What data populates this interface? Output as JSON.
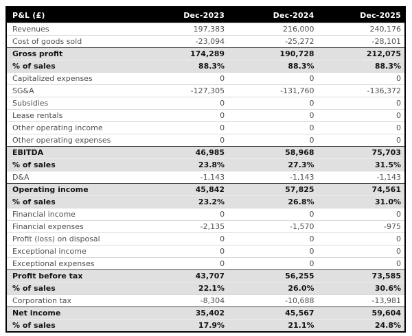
{
  "chart_data": {
    "type": "table",
    "title": "P&L (£)",
    "header": {
      "label": "P&L (£)",
      "columns": [
        "Dec-2023",
        "Dec-2024",
        "Dec-2025"
      ]
    },
    "rows": [
      {
        "label": "Revenues",
        "values": [
          "197,383",
          "216,000",
          "240,176"
        ],
        "style": "normal",
        "section_start": false
      },
      {
        "label": "Cost of goods sold",
        "values": [
          "-23,094",
          "-25,272",
          "-28,101"
        ],
        "style": "normal",
        "section_start": false
      },
      {
        "label": "Gross profit",
        "values": [
          "174,289",
          "190,728",
          "212,075"
        ],
        "style": "subtotal",
        "section_start": true
      },
      {
        "label": "% of sales",
        "values": [
          "88.3%",
          "88.3%",
          "88.3%"
        ],
        "style": "subtotal",
        "section_start": false
      },
      {
        "label": "Capitalized expenses",
        "values": [
          "0",
          "0",
          "0"
        ],
        "style": "normal",
        "section_start": false
      },
      {
        "label": "SG&A",
        "values": [
          "-127,305",
          "-131,760",
          "-136,372"
        ],
        "style": "normal",
        "section_start": false
      },
      {
        "label": "Subsidies",
        "values": [
          "0",
          "0",
          "0"
        ],
        "style": "normal",
        "section_start": false
      },
      {
        "label": "Lease rentals",
        "values": [
          "0",
          "0",
          "0"
        ],
        "style": "normal",
        "section_start": false
      },
      {
        "label": "Other operating income",
        "values": [
          "0",
          "0",
          "0"
        ],
        "style": "normal",
        "section_start": false
      },
      {
        "label": "Other operating expenses",
        "values": [
          "0",
          "0",
          "0"
        ],
        "style": "normal",
        "section_start": false
      },
      {
        "label": "EBITDA",
        "values": [
          "46,985",
          "58,968",
          "75,703"
        ],
        "style": "subtotal",
        "section_start": true
      },
      {
        "label": "% of sales",
        "values": [
          "23.8%",
          "27.3%",
          "31.5%"
        ],
        "style": "subtotal",
        "section_start": false
      },
      {
        "label": "D&A",
        "values": [
          "-1,143",
          "-1,143",
          "-1,143"
        ],
        "style": "normal",
        "section_start": false
      },
      {
        "label": "Operating income",
        "values": [
          "45,842",
          "57,825",
          "74,561"
        ],
        "style": "subtotal",
        "section_start": true
      },
      {
        "label": "% of sales",
        "values": [
          "23.2%",
          "26.8%",
          "31.0%"
        ],
        "style": "subtotal",
        "section_start": false
      },
      {
        "label": "Financial income",
        "values": [
          "0",
          "0",
          "0"
        ],
        "style": "normal",
        "section_start": false
      },
      {
        "label": "Financial expenses",
        "values": [
          "-2,135",
          "-1,570",
          "-975"
        ],
        "style": "normal",
        "section_start": false
      },
      {
        "label": "Profit (loss) on disposal",
        "values": [
          "0",
          "0",
          "0"
        ],
        "style": "normal",
        "section_start": false
      },
      {
        "label": "Exceptional income",
        "values": [
          "0",
          "0",
          "0"
        ],
        "style": "normal",
        "section_start": false
      },
      {
        "label": "Exceptional expenses",
        "values": [
          "0",
          "0",
          "0"
        ],
        "style": "normal",
        "section_start": false
      },
      {
        "label": "Profit before tax",
        "values": [
          "43,707",
          "56,255",
          "73,585"
        ],
        "style": "subtotal",
        "section_start": true
      },
      {
        "label": "% of sales",
        "values": [
          "22.1%",
          "26.0%",
          "30.6%"
        ],
        "style": "subtotal",
        "section_start": false
      },
      {
        "label": "Corporation tax",
        "values": [
          "-8,304",
          "-10,688",
          "-13,981"
        ],
        "style": "normal",
        "section_start": false
      },
      {
        "label": "Net income",
        "values": [
          "35,402",
          "45,567",
          "59,604"
        ],
        "style": "subtotal",
        "section_start": true
      },
      {
        "label": "% of sales",
        "values": [
          "17.9%",
          "21.1%",
          "24.8%"
        ],
        "style": "subtotal",
        "section_start": false
      }
    ],
    "layout": {
      "header_bg": "#000000",
      "header_text": "#ffffff",
      "subtotal_row_bg": "#e0e0e0",
      "subtotal_text": "#141414",
      "normal_text": "#4f4f4f",
      "row_divider": "#d9d9d9",
      "section_divider": "#3c3c3c",
      "outer_border": "#000000",
      "grid": "horizontal-only",
      "numeric_alignment": "right"
    }
  }
}
